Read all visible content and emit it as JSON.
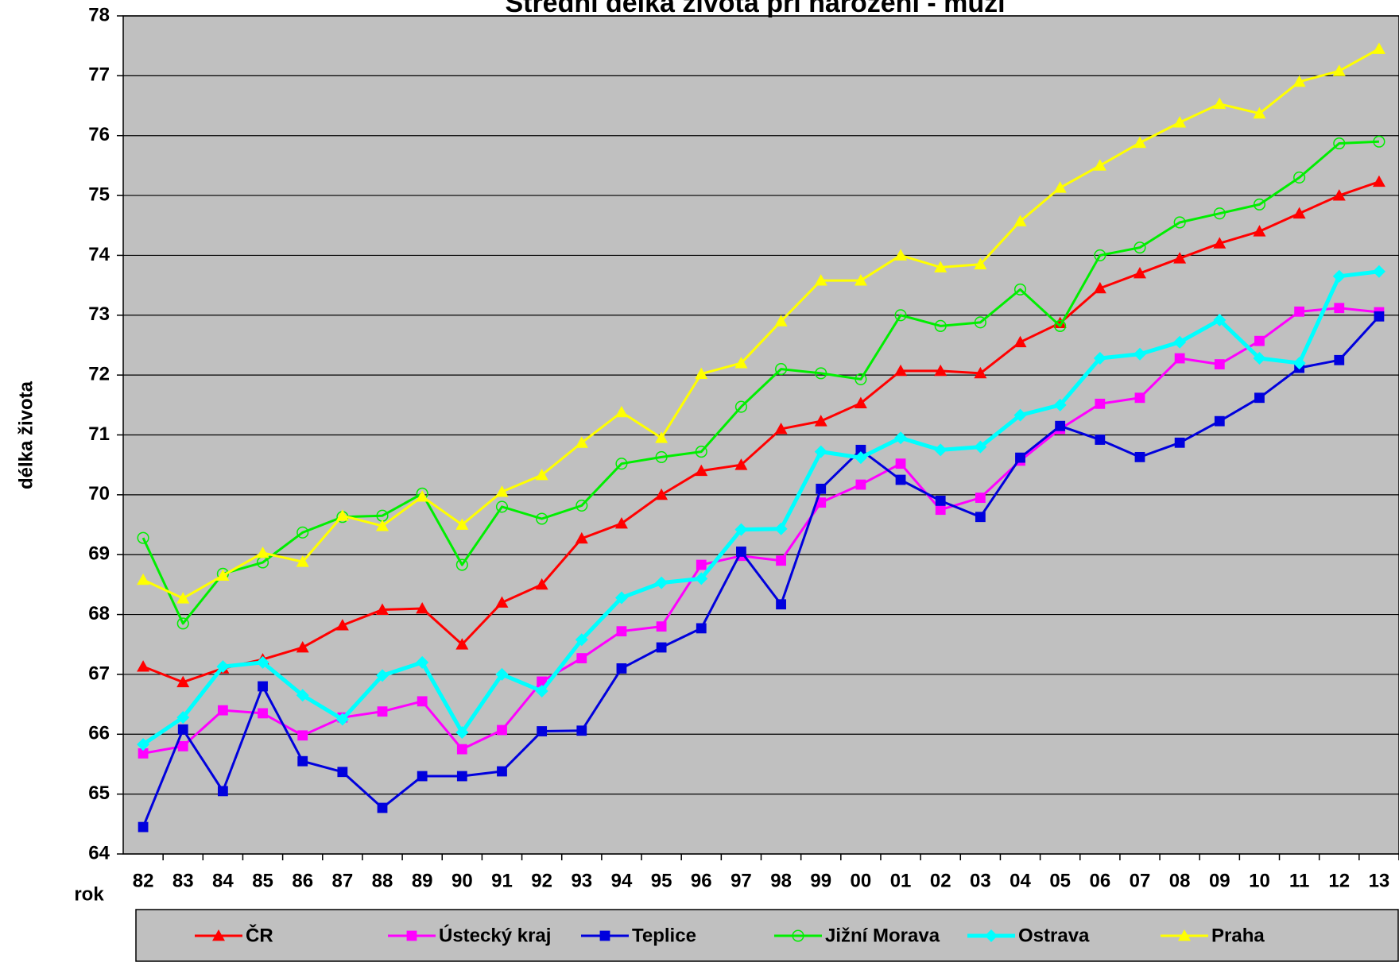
{
  "chart_data": {
    "type": "line",
    "title": "Střední délka života při narození - muži",
    "ylabel": "délka života",
    "xlabel": "rok",
    "categories": [
      "82",
      "83",
      "84",
      "85",
      "86",
      "87",
      "88",
      "89",
      "90",
      "91",
      "92",
      "93",
      "94",
      "95",
      "96",
      "97",
      "98",
      "99",
      "00",
      "01",
      "02",
      "03",
      "04",
      "05",
      "06",
      "07",
      "08",
      "09",
      "10",
      "11",
      "12",
      "13"
    ],
    "ylim": [
      64,
      78
    ],
    "yticks": [
      64,
      65,
      66,
      67,
      68,
      69,
      70,
      71,
      72,
      73,
      74,
      75,
      76,
      77,
      78
    ],
    "grid": true,
    "series": [
      {
        "name": "ČR",
        "color": "#ff0000",
        "marker": "triangle",
        "values": [
          67.13,
          66.87,
          67.1,
          67.25,
          67.45,
          67.82,
          68.08,
          68.1,
          67.5,
          68.2,
          68.5,
          69.27,
          69.52,
          70.0,
          70.4,
          70.5,
          71.1,
          71.23,
          71.53,
          72.07,
          72.07,
          72.03,
          72.55,
          72.87,
          73.45,
          73.7,
          73.95,
          74.2,
          74.4,
          74.7,
          75.0,
          75.23
        ]
      },
      {
        "name": "Ústecký kraj",
        "color": "#ff00ff",
        "marker": "square",
        "values": [
          65.68,
          65.8,
          66.4,
          66.35,
          65.98,
          66.28,
          66.38,
          66.55,
          65.75,
          66.07,
          66.88,
          67.27,
          67.72,
          67.8,
          68.83,
          68.98,
          68.9,
          69.87,
          70.17,
          70.52,
          69.75,
          69.95,
          70.57,
          71.1,
          71.52,
          71.62,
          72.28,
          72.18,
          72.57,
          73.06,
          73.12,
          73.05
        ]
      },
      {
        "name": "Teplice",
        "color": "#0000dd",
        "marker": "square",
        "values": [
          64.45,
          66.08,
          65.05,
          66.8,
          65.55,
          65.37,
          64.77,
          65.3,
          65.3,
          65.38,
          66.05,
          66.06,
          67.1,
          67.45,
          67.77,
          69.05,
          68.17,
          70.1,
          70.75,
          70.25,
          69.9,
          69.63,
          70.62,
          71.15,
          70.92,
          70.63,
          70.87,
          71.23,
          71.62,
          72.12,
          72.25,
          72.98
        ]
      },
      {
        "name": "Jižní Morava",
        "color": "#00ee00",
        "marker": "circle",
        "values": [
          69.28,
          67.85,
          68.68,
          68.87,
          69.37,
          69.63,
          69.65,
          70.02,
          68.83,
          69.8,
          69.6,
          69.82,
          70.52,
          70.63,
          70.72,
          71.47,
          72.1,
          72.03,
          71.93,
          73.0,
          72.82,
          72.88,
          73.43,
          72.82,
          74.0,
          74.13,
          74.55,
          74.7,
          74.85,
          75.3,
          75.87,
          75.9
        ]
      },
      {
        "name": "Ostrava",
        "color": "#00ffff",
        "marker": "diamond",
        "values": [
          65.83,
          66.28,
          67.13,
          67.2,
          66.65,
          66.25,
          66.98,
          67.2,
          66.03,
          67.0,
          66.72,
          67.58,
          68.28,
          68.53,
          68.6,
          69.42,
          69.43,
          70.72,
          70.62,
          70.95,
          70.75,
          70.8,
          71.33,
          71.5,
          72.28,
          72.35,
          72.55,
          72.92,
          72.28,
          72.2,
          73.65,
          73.73
        ]
      },
      {
        "name": "Praha",
        "color": "#ffff00",
        "marker": "triangle",
        "values": [
          68.58,
          68.27,
          68.65,
          69.03,
          68.88,
          69.65,
          69.48,
          69.97,
          69.5,
          70.05,
          70.33,
          70.87,
          71.38,
          70.95,
          72.02,
          72.2,
          72.9,
          73.58,
          73.58,
          74.0,
          73.8,
          73.85,
          74.57,
          75.13,
          75.5,
          75.88,
          76.22,
          76.53,
          76.37,
          76.9,
          77.08,
          77.45
        ]
      }
    ]
  }
}
